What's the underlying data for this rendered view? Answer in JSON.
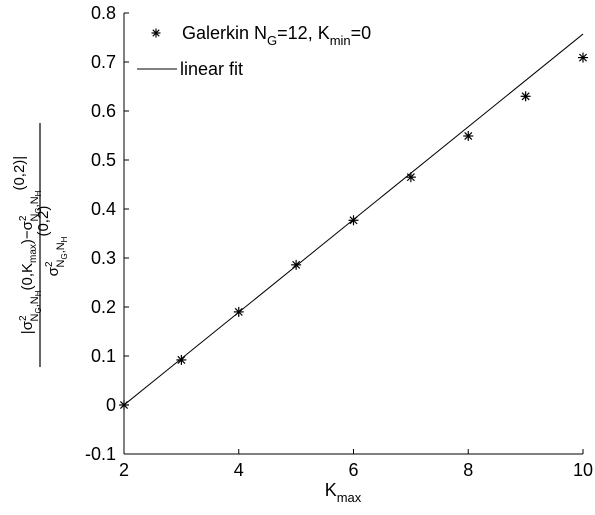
{
  "chart_data": {
    "type": "scatter",
    "x_axis": {
      "label": "K",
      "label_sub": "max",
      "range": [
        2,
        10
      ],
      "ticks": [
        2,
        4,
        6,
        8,
        10
      ],
      "tick_labels": [
        "2",
        "4",
        "6",
        "8",
        "10"
      ]
    },
    "y_axis": {
      "range": [
        -0.1,
        0.8
      ],
      "ticks": [
        -0.1,
        0,
        0.1,
        0.2,
        0.3,
        0.4,
        0.5,
        0.6,
        0.7,
        0.8
      ],
      "tick_labels": [
        "-0.1",
        "0",
        "0.1",
        "0.2",
        "0.3",
        "0.4",
        "0.5",
        "0.6",
        "0.7",
        "0.8"
      ]
    },
    "grid": false,
    "legend_position": "top-left",
    "series": [
      {
        "name": "Galerkin N_G=12, K_min=0",
        "marker": "asterisk",
        "color": "#000000",
        "x": [
          2,
          3,
          4,
          5,
          6,
          7,
          8,
          9,
          10
        ],
        "y": [
          0.0,
          0.092,
          0.19,
          0.286,
          0.377,
          0.465,
          0.549,
          0.63,
          0.709
        ]
      },
      {
        "name": "linear fit",
        "style": "line",
        "color": "#000000",
        "x": [
          2,
          10
        ],
        "y": [
          0.0,
          0.757
        ]
      }
    ]
  },
  "legend": {
    "galerkin": {
      "text": "Galerkin N",
      "sub1": "G",
      "text2": "=12, K",
      "sub2": "min",
      "text3": "=0"
    },
    "fit": {
      "text": "linear fit"
    }
  },
  "ylabel": {
    "num_left": "|σ",
    "num_sup1": "2",
    "num_sub1": "N",
    "num_sub1_sub": "G",
    "num_sub1_rest": ",N",
    "num_sub1_sub2": "H",
    "num_mid": "(0,K",
    "num_mid_sub": "max",
    "num_mid2": ")−σ",
    "num_sup2": "2",
    "num_sub2": "N",
    "num_sub2_sub": "G",
    "num_sub2_rest": ",N",
    "num_sub2_sub2": "H",
    "num_end": "(0,2)|",
    "den_left": "σ",
    "den_sup": "2",
    "den_sub": "N",
    "den_sub_sub": "G",
    "den_sub_rest": ",N",
    "den_sub_sub2": "H",
    "den_end": "(0,2)"
  }
}
